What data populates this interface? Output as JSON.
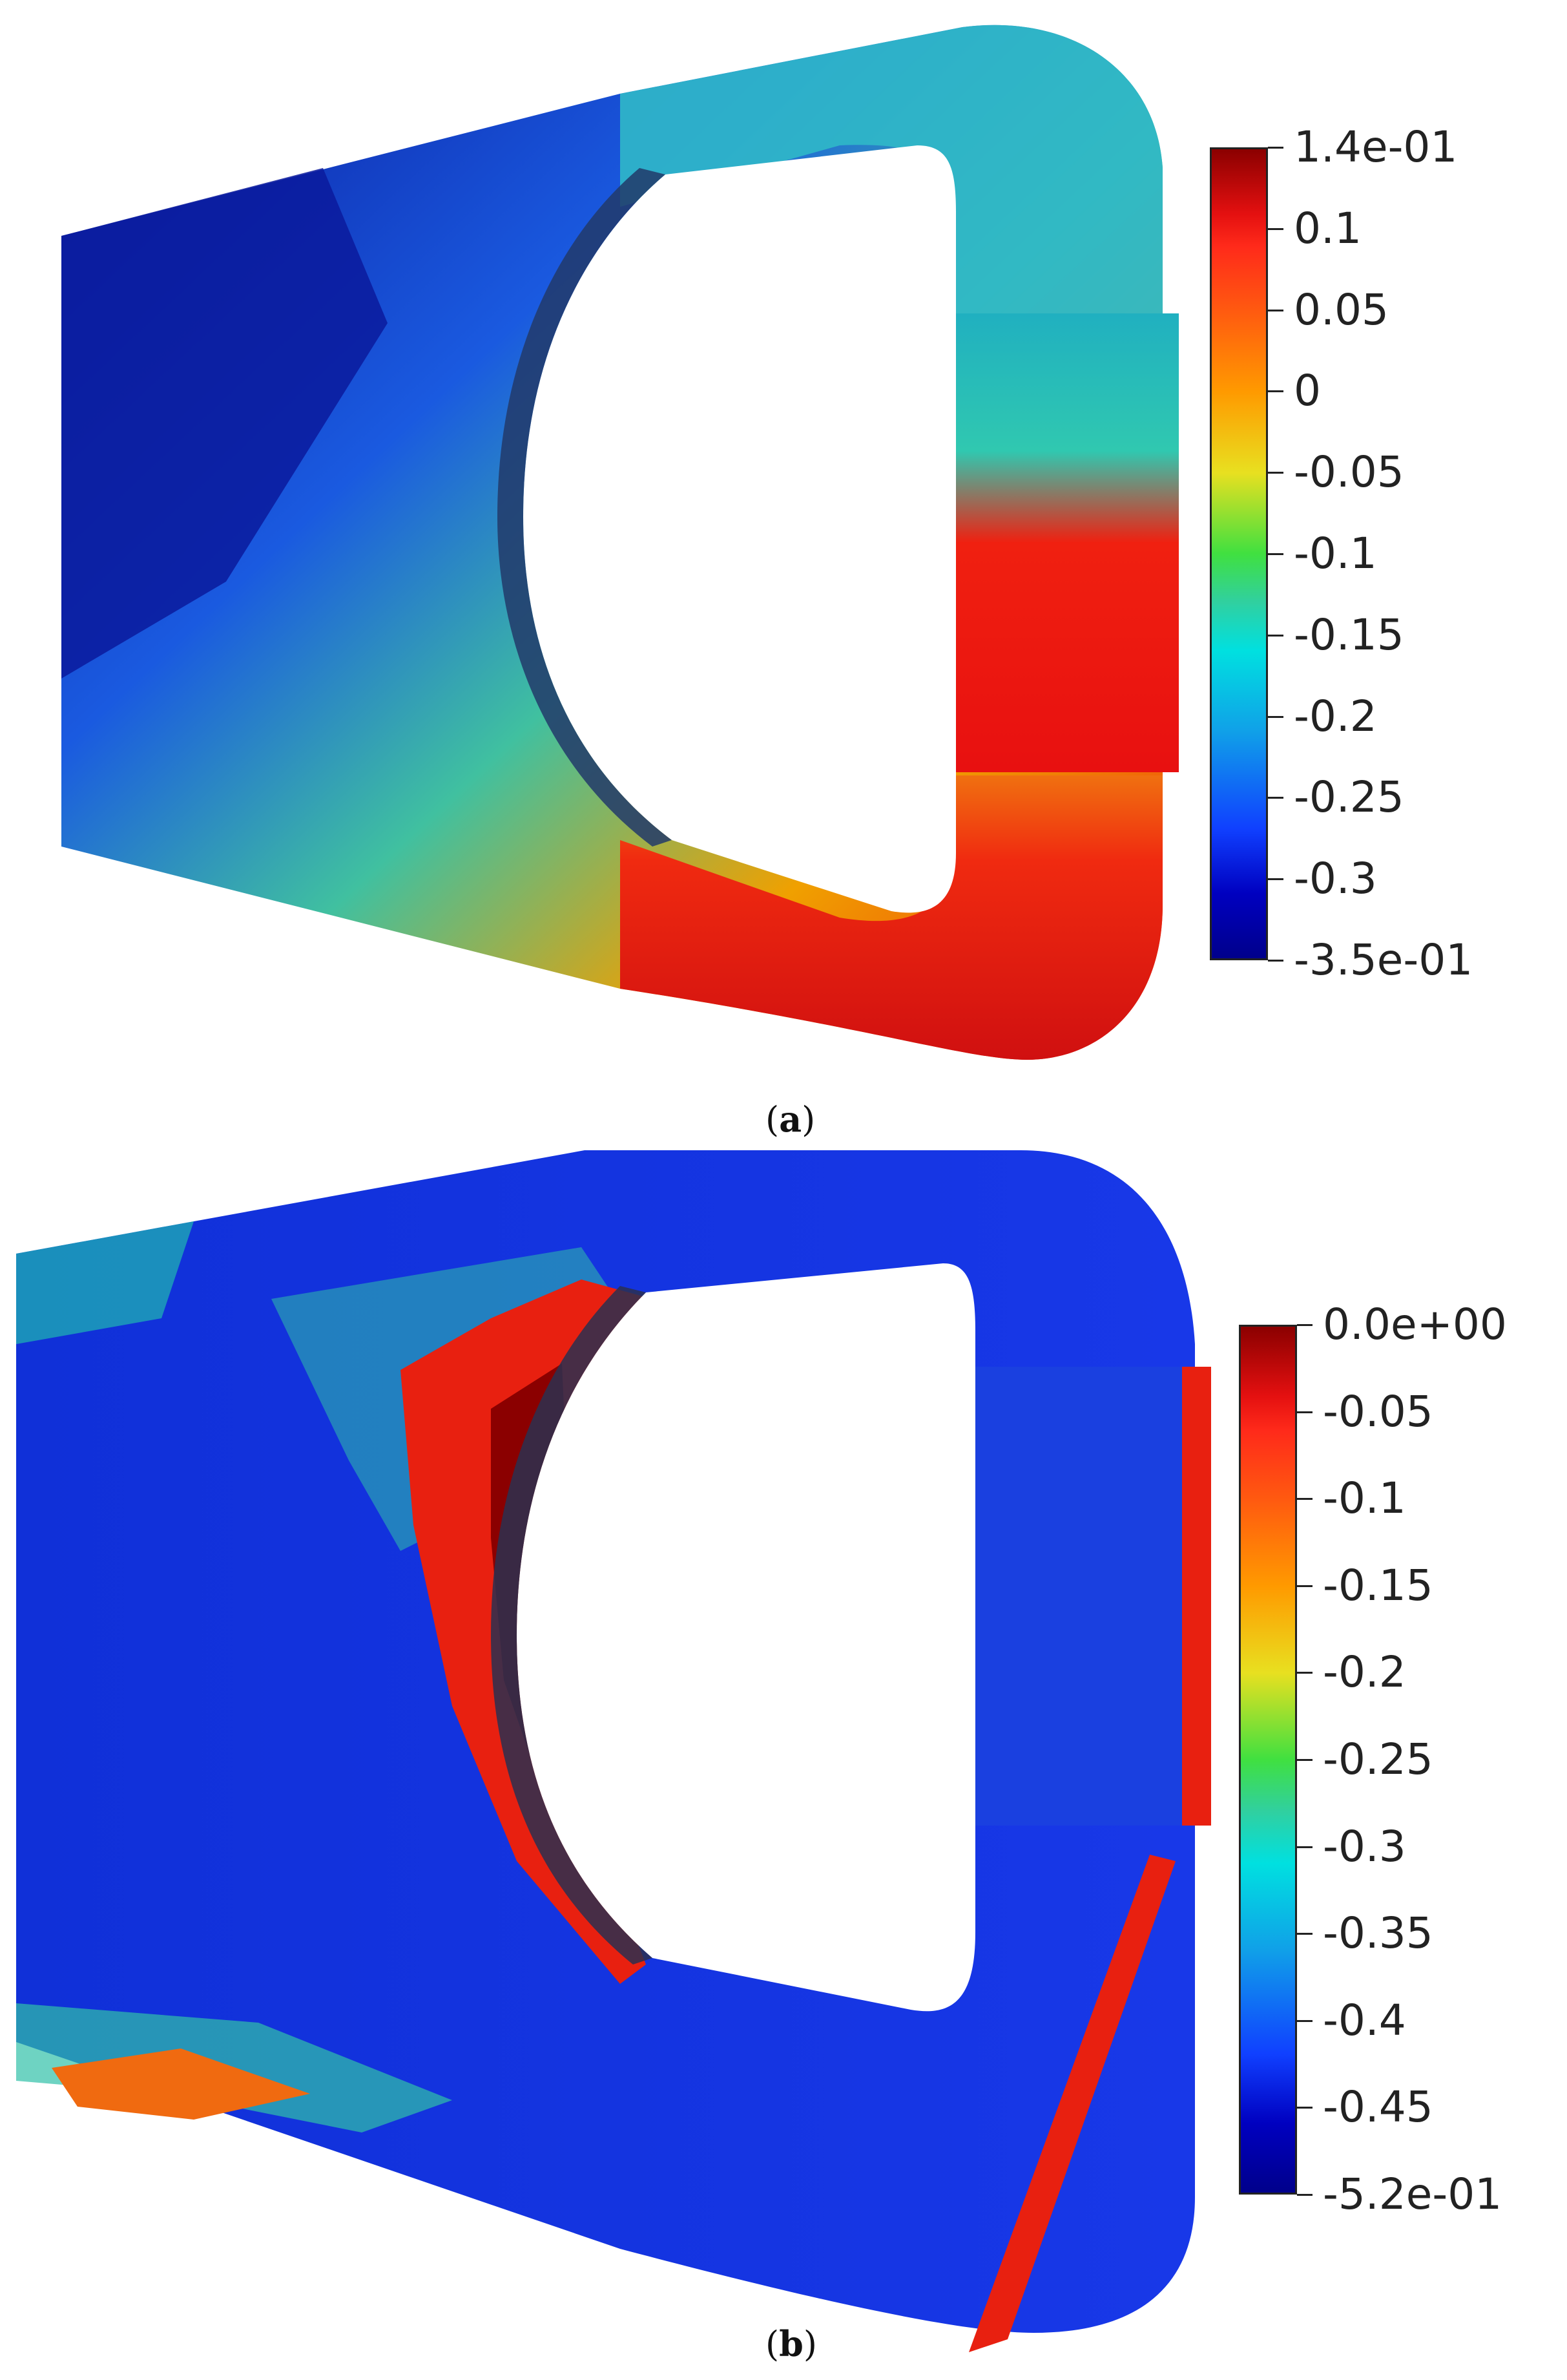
{
  "figure": {
    "panels": [
      {
        "id": "a",
        "caption_open": "(",
        "caption_letter": "a",
        "caption_close": ")",
        "colorbar": {
          "labels": [
            "1.4e-01",
            "0.1",
            "0.05",
            "0",
            "-0.05",
            "-0.1",
            "-0.15",
            "-0.2",
            "-0.25",
            "-0.3",
            "-3.5e-01"
          ],
          "max": 0.14,
          "min": -0.35
        }
      },
      {
        "id": "b",
        "caption_open": "(",
        "caption_letter": "b",
        "caption_close": ")",
        "colorbar": {
          "labels": [
            "0.0e+00",
            "-0.05",
            "-0.1",
            "-0.15",
            "-0.2",
            "-0.25",
            "-0.3",
            "-0.35",
            "-0.4",
            "-0.45",
            "-5.2e-01"
          ],
          "max": 0.0,
          "min": -0.52
        }
      }
    ],
    "colormap": [
      "#00008b",
      "#1040ff",
      "#10a0e8",
      "#00e0e0",
      "#40e040",
      "#e8e020",
      "#ff9a00",
      "#ff2a1a",
      "#8b0000"
    ]
  }
}
